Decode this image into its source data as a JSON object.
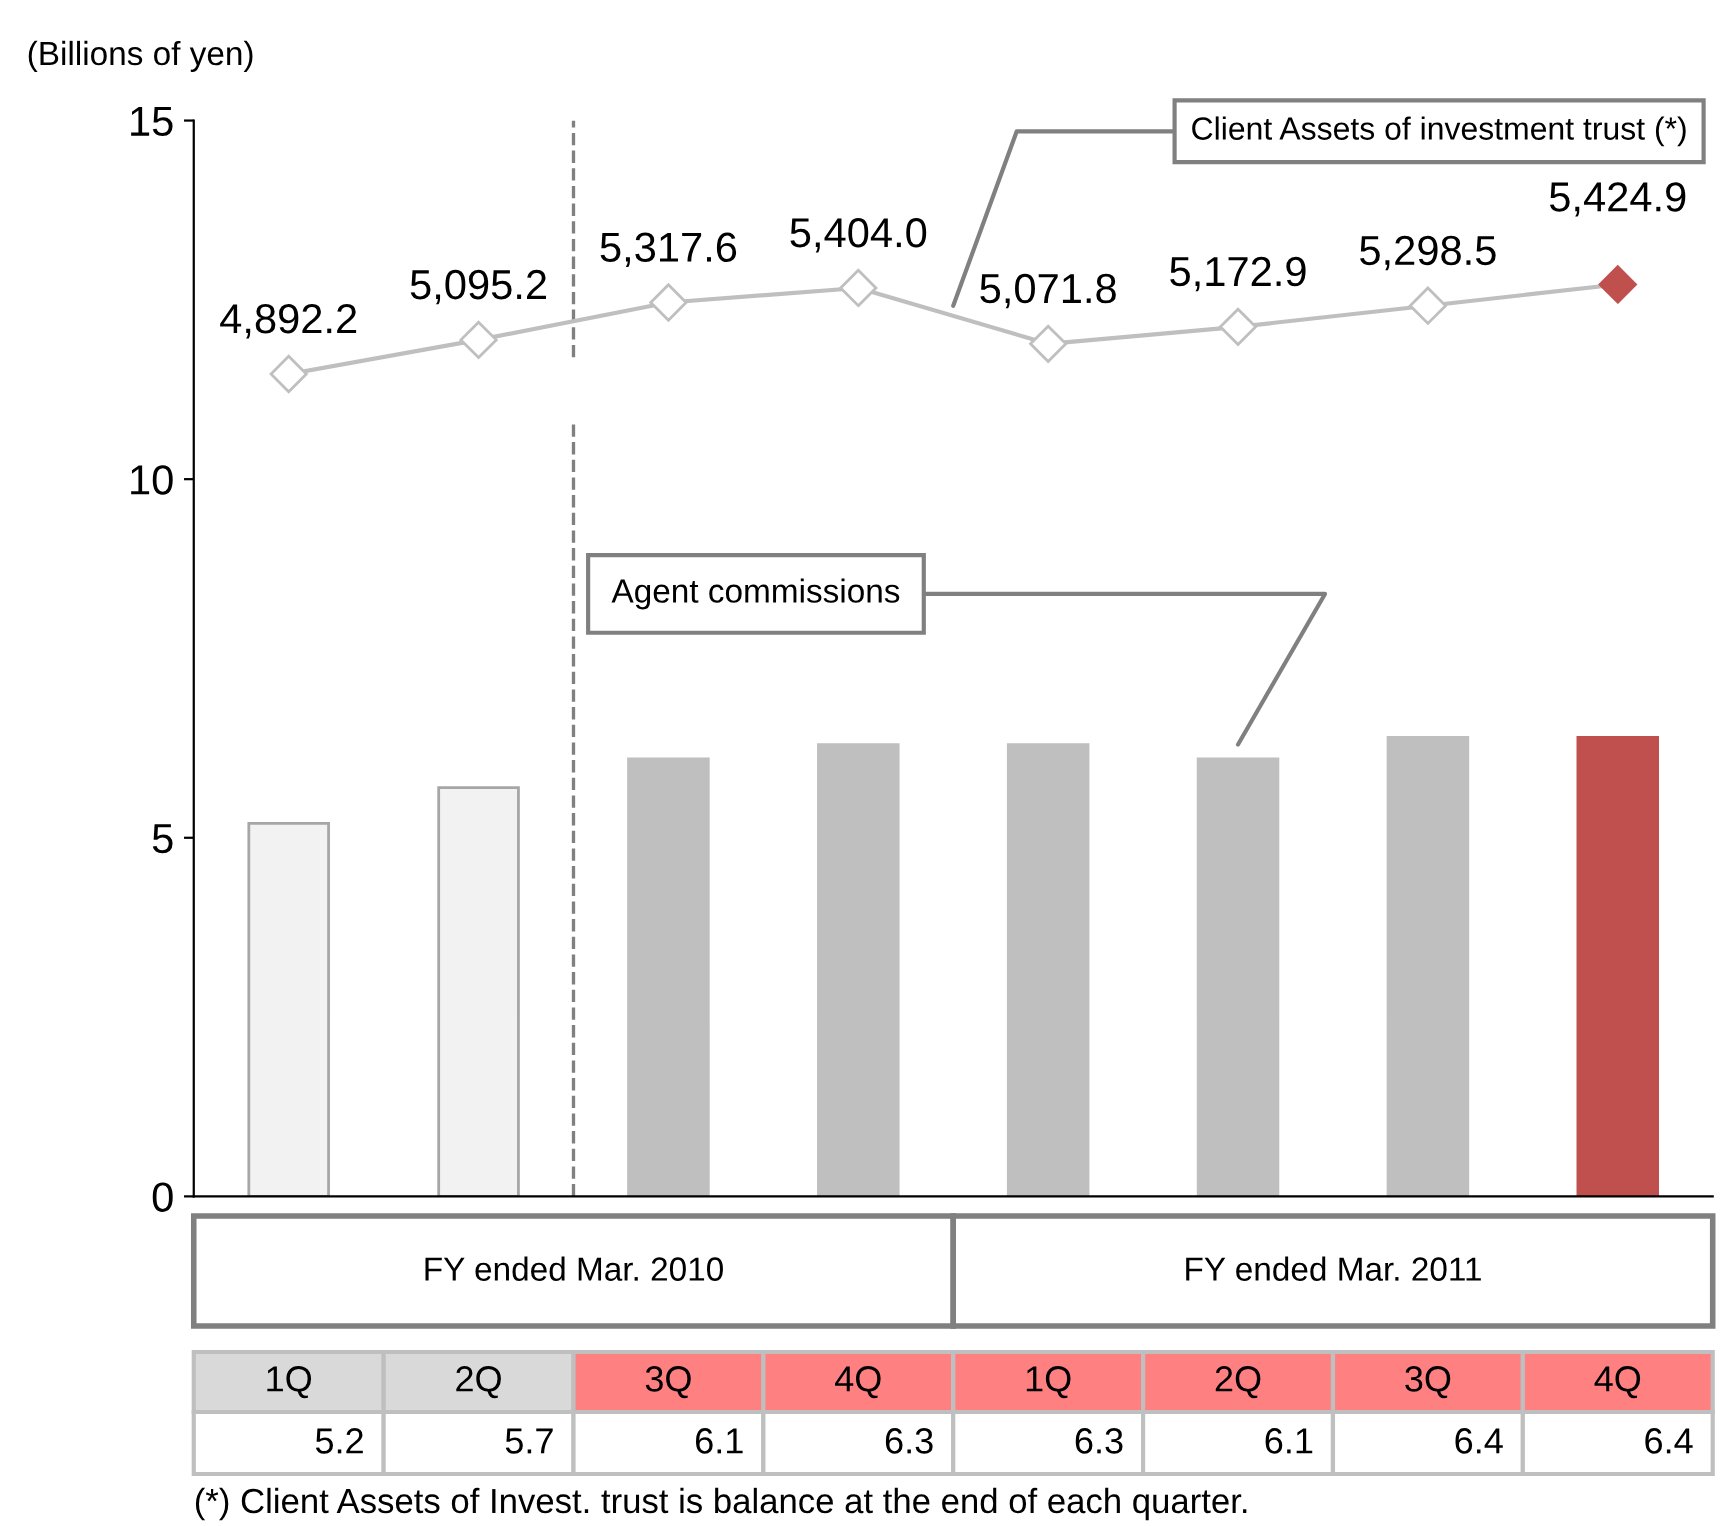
{
  "chart_data": {
    "type": "bar",
    "ylabel": "(Billions of yen)",
    "categories": [
      "1Q",
      "2Q",
      "3Q",
      "4Q",
      "1Q",
      "2Q",
      "3Q",
      "4Q"
    ],
    "series": [
      {
        "name": "Agent commissions",
        "colors": [
          "#f2f2f2",
          "#f2f2f2",
          "#bfbfbf",
          "#bfbfbf",
          "#bfbfbf",
          "#bfbfbf",
          "#bfbfbf",
          "#c0504d"
        ],
        "values": [
          5.2,
          5.7,
          6.1,
          6.3,
          6.3,
          6.1,
          6.4,
          6.4
        ],
        "value_labels": [
          "5.2",
          "5.7",
          "6.1",
          "6.3",
          "6.3",
          "6.1",
          "6.4",
          "6.4"
        ]
      },
      {
        "name": "Client Assets of investment trust (*)",
        "type": "line",
        "axis": "y2",
        "marker": "diamond",
        "color": "#bfbfbf",
        "colors": [
          "#ffffff",
          "#ffffff",
          "#ffffff",
          "#ffffff",
          "#ffffff",
          "#ffffff",
          "#ffffff",
          "#c0504d"
        ],
        "values": [
          4892.2,
          5095.2,
          5317.6,
          5404.0,
          5071.8,
          5172.9,
          5298.5,
          5424.9
        ],
        "value_labels": [
          "4,892.2",
          "5,095.2",
          "5,317.6",
          "5,404.0",
          "5,071.8",
          "5,172.9",
          "5,298.5",
          "5,424.9"
        ]
      }
    ],
    "ylim": [
      0,
      15
    ],
    "yticks": [
      0,
      5,
      10,
      15
    ],
    "y2lim": [
      0,
      6400
    ],
    "annotations": [
      "FY ended Mar. 2010",
      "FY ended Mar. 2011",
      "(*) Client Assets of Invest. trust is balance at the end of each quarter."
    ],
    "grid": false,
    "legend": false
  }
}
